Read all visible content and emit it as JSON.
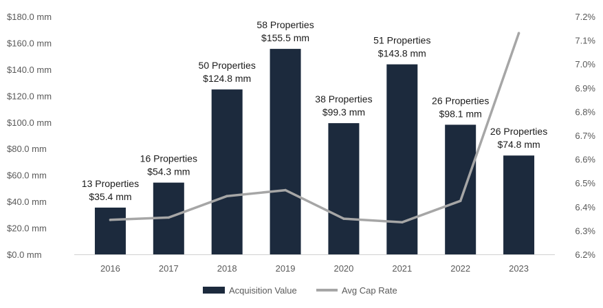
{
  "chart_data": {
    "type": "bar",
    "categories": [
      "2016",
      "2017",
      "2018",
      "2019",
      "2020",
      "2021",
      "2022",
      "2023"
    ],
    "series": [
      {
        "name": "Acquisition Value",
        "type": "bar",
        "axis": "left",
        "values": [
          35.4,
          54.3,
          124.8,
          155.5,
          99.3,
          143.8,
          98.1,
          74.8
        ],
        "color": "#1c2a3d"
      },
      {
        "name": "Avg Cap Rate",
        "type": "line",
        "axis": "right",
        "values": [
          6.345,
          6.355,
          6.445,
          6.47,
          6.35,
          6.335,
          6.425,
          7.13
        ],
        "color": "#a6a6a6"
      }
    ],
    "data_labels": [
      {
        "count": "13 Properties",
        "value": "$35.4 mm"
      },
      {
        "count": "16 Properties",
        "value": "$54.3 mm"
      },
      {
        "count": "50 Properties",
        "value": "$124.8 mm"
      },
      {
        "count": "58 Properties",
        "value": "$155.5 mm"
      },
      {
        "count": "38 Properties",
        "value": "$99.3 mm"
      },
      {
        "count": "51 Properties",
        "value": "$143.8 mm"
      },
      {
        "count": "26 Properties",
        "value": "$98.1 mm"
      },
      {
        "count": "26 Properties",
        "value": "$74.8 mm"
      }
    ],
    "left_axis": {
      "min": 0,
      "max": 180,
      "step": 20,
      "tick_labels": [
        "$0.0 mm",
        "$20.0 mm",
        "$40.0 mm",
        "$60.0 mm",
        "$80.0 mm",
        "$100.0 mm",
        "$120.0 mm",
        "$140.0 mm",
        "$160.0 mm",
        "$180.0 mm"
      ]
    },
    "right_axis": {
      "min": 6.2,
      "max": 7.2,
      "step": 0.1,
      "tick_labels": [
        "6.2%",
        "6.3%",
        "6.4%",
        "6.5%",
        "6.6%",
        "6.7%",
        "6.8%",
        "6.9%",
        "7.0%",
        "7.1%",
        "7.2%"
      ]
    },
    "grid": false,
    "legend_position": "bottom-center",
    "title": "",
    "xlabel": "",
    "ylabel": ""
  }
}
